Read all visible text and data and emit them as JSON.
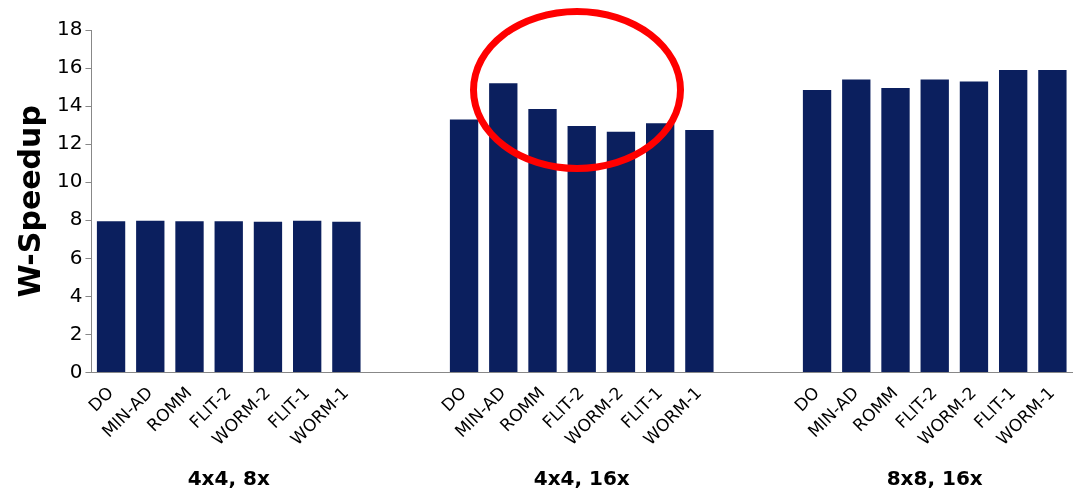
{
  "chart_data": {
    "type": "bar",
    "ylabel": "W-Speedup",
    "categories": [
      "DO",
      "MIN-AD",
      "ROMM",
      "FLIT-2",
      "WORM-2",
      "FLIT-1",
      "WORM-1",
      null,
      null,
      "DO",
      "MIN-AD",
      "ROMM",
      "FLIT-2",
      "WORM-2",
      "FLIT-1",
      "WORM-1",
      null,
      null,
      "DO",
      "MIN-AD",
      "ROMM",
      "FLIT-2",
      "WORM-2",
      "FLIT-1",
      "WORM-1"
    ],
    "values": [
      7.95,
      7.98,
      7.95,
      7.95,
      7.92,
      7.98,
      7.92,
      null,
      null,
      13.3,
      15.2,
      13.85,
      12.95,
      12.65,
      13.1,
      12.75,
      null,
      null,
      14.85,
      15.4,
      14.95,
      15.4,
      15.3,
      15.9,
      15.9
    ],
    "color": "#0b1f5e",
    "ylim": [
      0,
      18
    ],
    "yticks": [
      0,
      2,
      4,
      6,
      8,
      10,
      12,
      14,
      16,
      18
    ],
    "grid": false,
    "legend": false,
    "annotations": [
      "4x4, 8x",
      "4x4, 16x",
      "8x8, 16x"
    ]
  }
}
